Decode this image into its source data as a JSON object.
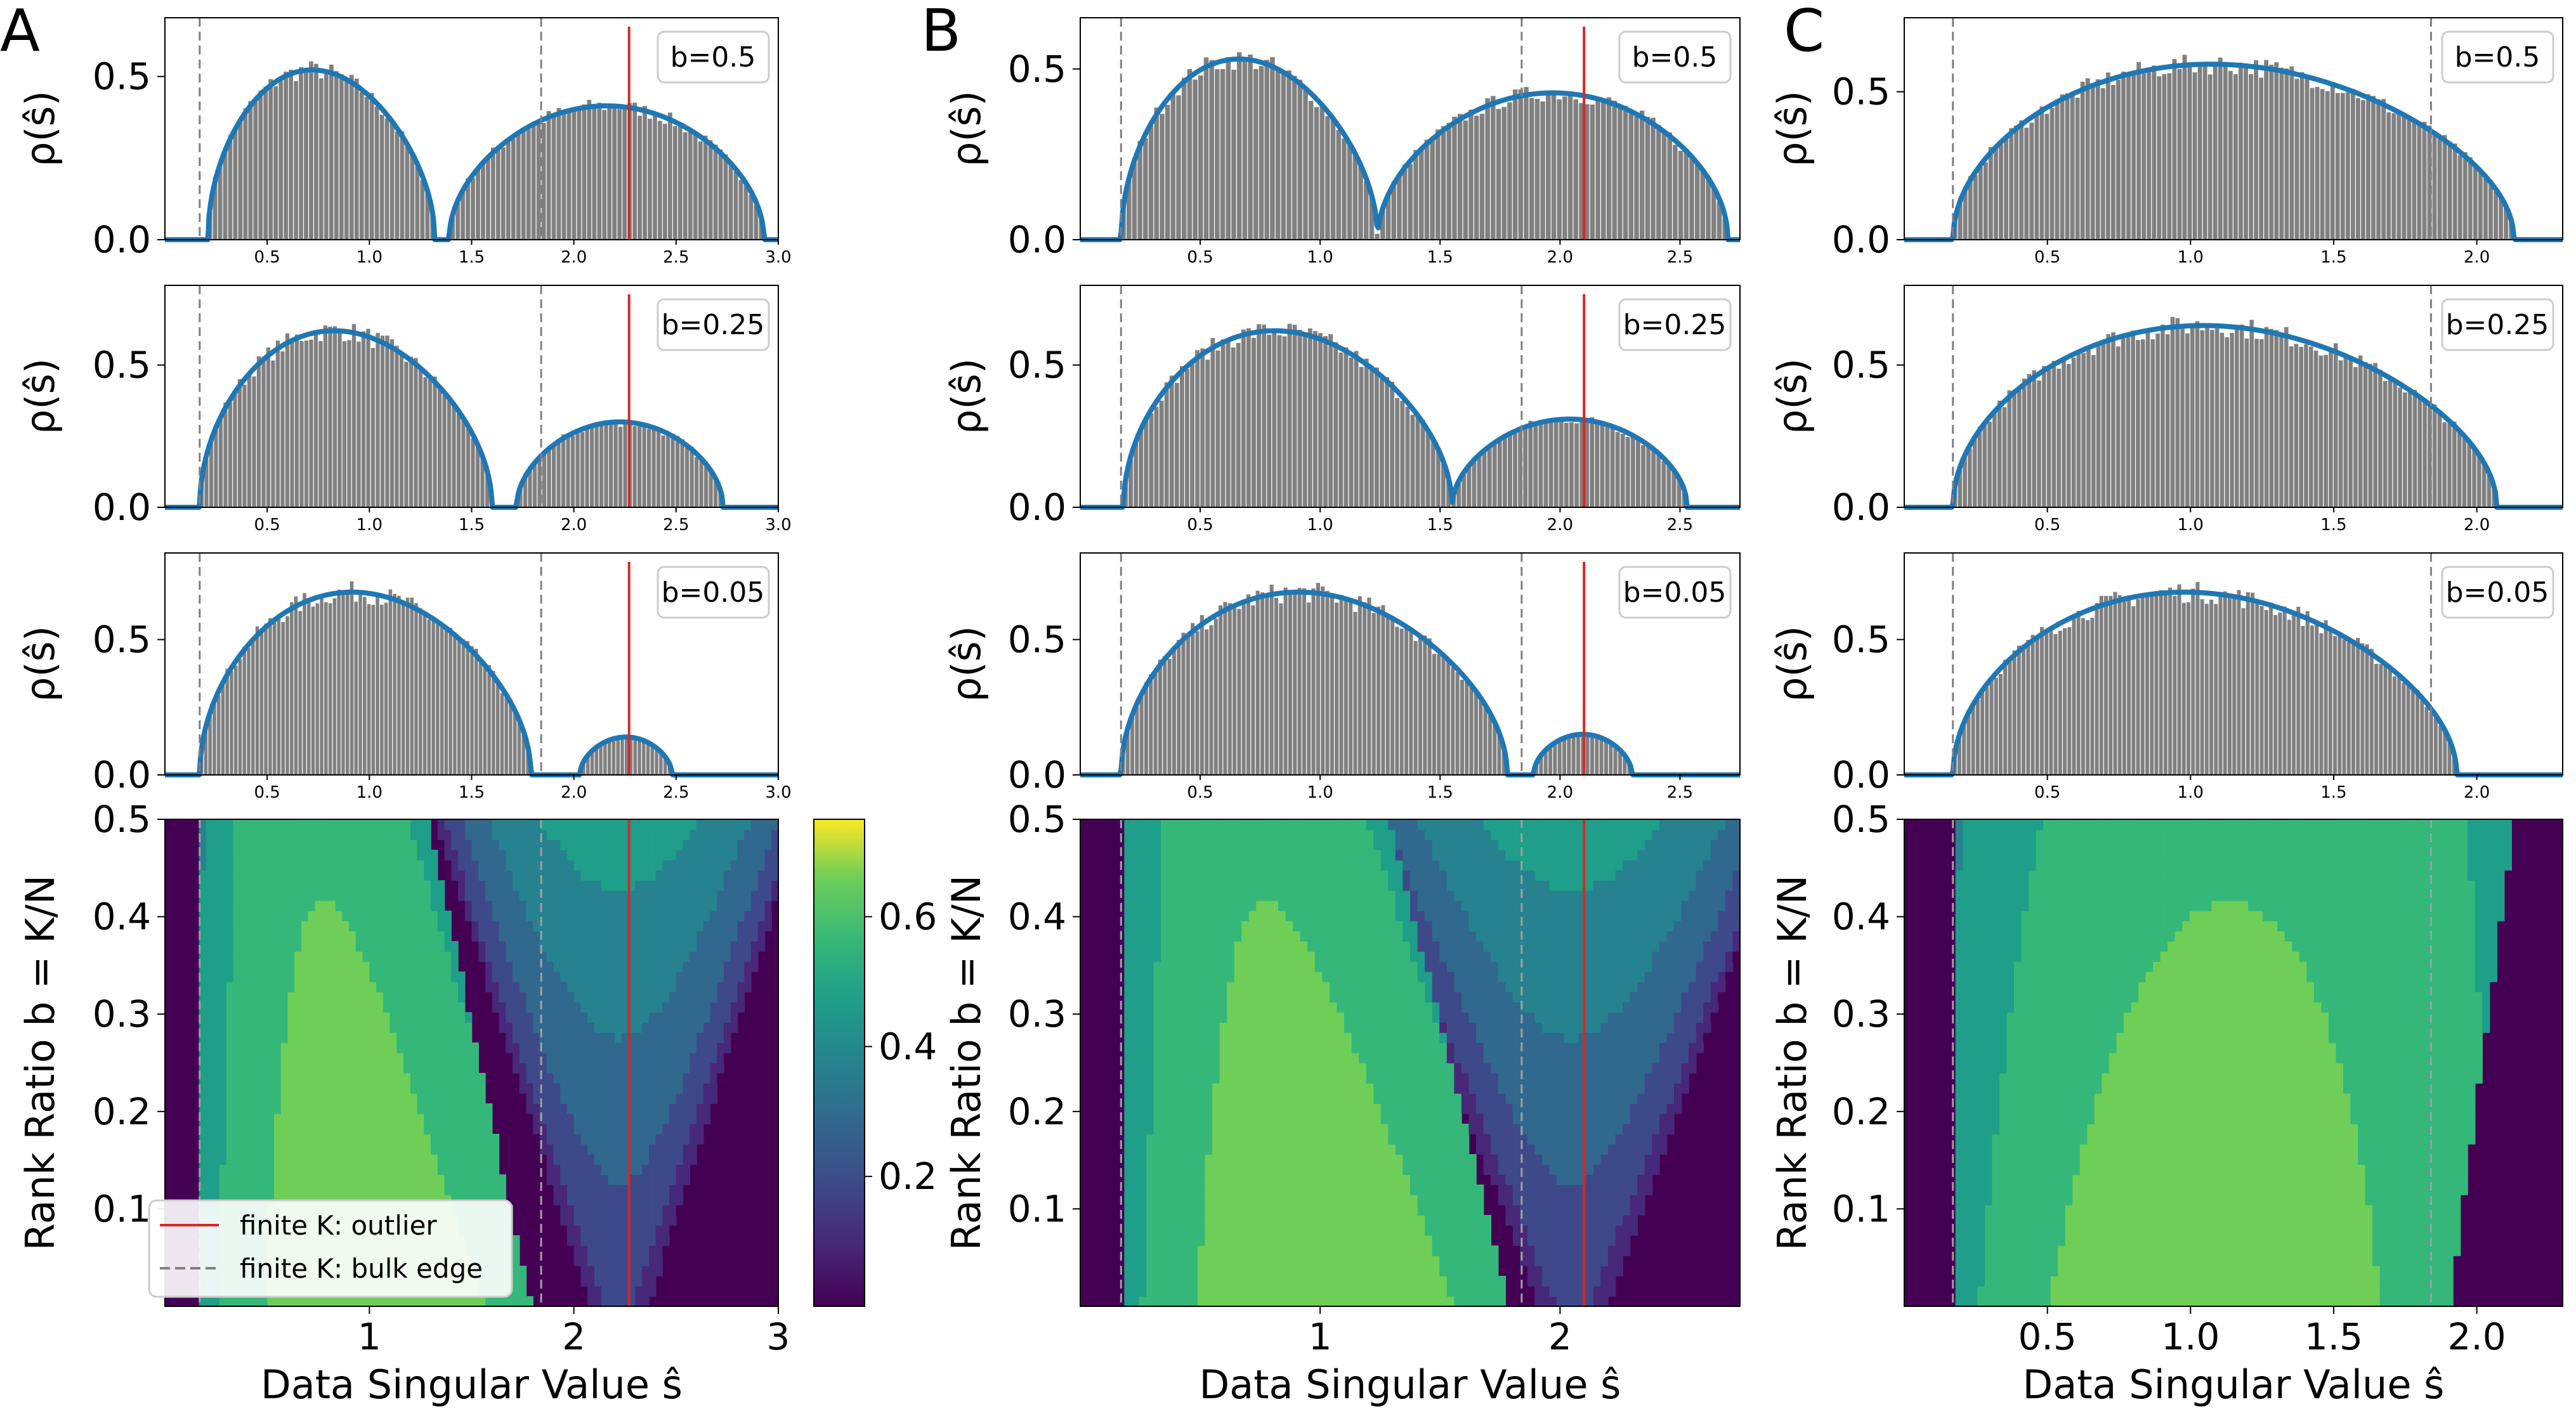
{
  "figure": {
    "y_axis_label_hist": "ρ(ŝ)",
    "y_axis_label_heatmap": "Rank Ratio b = K/N",
    "x_axis_label": "Data Singular Value ŝ",
    "colorbar_ticks": [
      "0.2",
      "0.4",
      "0.6"
    ],
    "colorbar_range": [
      0.0,
      0.75
    ],
    "legend": [
      {
        "label": "finite K: outlier",
        "color": "#d62728",
        "style": "solid"
      },
      {
        "label": "finite K: bulk edge",
        "color": "#808080",
        "style": "dashed"
      }
    ]
  },
  "chart_data": [
    {
      "panel": "A",
      "type": "bar",
      "description_of_layout": "three histograms with theory curves plus heatmap",
      "xlim": [
        0.0,
        3.0
      ],
      "hist_xticks": [
        "0.5",
        "1.0",
        "1.5",
        "2.0",
        "2.5",
        "3.0"
      ],
      "heatmap_xticks": [
        "1",
        "2",
        "3"
      ],
      "heatmap_ylim": [
        0.0,
        0.5
      ],
      "heatmap_yticks": [
        "0.1",
        "0.2",
        "0.3",
        "0.4",
        "0.5"
      ],
      "outlier": 2.27,
      "bulk_edges": [
        0.17,
        1.84
      ],
      "histograms": [
        {
          "label": "b=0.5",
          "ylim": [
            0,
            0.68
          ],
          "yticks": [
            "0.0",
            "0.5"
          ],
          "bulk": [
            [
              0.21,
              1.32,
              0.57
            ]
          ],
          "bump": [
            [
              1.39,
              2.93,
              0.41,
              2.15
            ]
          ]
        },
        {
          "label": "b=0.25",
          "ylim": [
            0,
            0.78
          ],
          "yticks": [
            "0.0",
            "0.5"
          ],
          "bulk": [
            [
              0.17,
              1.6,
              0.68
            ]
          ],
          "bump": [
            [
              1.72,
              2.73,
              0.3,
              2.2
            ]
          ]
        },
        {
          "label": "b=0.05",
          "ylim": [
            0,
            0.82
          ],
          "yticks": [
            "0.0",
            "0.5"
          ],
          "bulk": [
            [
              0.17,
              1.79,
              0.74
            ]
          ],
          "bump": [
            [
              2.03,
              2.48,
              0.14,
              2.25
            ]
          ]
        }
      ]
    },
    {
      "panel": "B",
      "type": "bar",
      "xlim": [
        0.0,
        2.75
      ],
      "hist_xticks": [
        "0.5",
        "1.0",
        "1.5",
        "2.0",
        "2.5"
      ],
      "heatmap_xticks": [
        "1",
        "2"
      ],
      "heatmap_ylim": [
        0.0,
        0.5
      ],
      "heatmap_yticks": [
        "0.1",
        "0.2",
        "0.3",
        "0.4",
        "0.5"
      ],
      "outlier": 2.1,
      "bulk_edges": [
        0.17,
        1.84
      ],
      "histograms": [
        {
          "label": "b=0.5",
          "ylim": [
            0,
            0.65
          ],
          "yticks": [
            "0.0",
            "0.5"
          ],
          "bulk": [
            [
              0.17,
              1.24,
              0.58
            ]
          ],
          "bump": [
            [
              1.24,
              2.7,
              0.43,
              1.95
            ]
          ]
        },
        {
          "label": "b=0.25",
          "ylim": [
            0,
            0.78
          ],
          "yticks": [
            "0.0",
            "0.5"
          ],
          "bulk": [
            [
              0.18,
              1.55,
              0.68
            ]
          ],
          "bump": [
            [
              1.55,
              2.53,
              0.31,
              2.0
            ]
          ]
        },
        {
          "label": "b=0.05",
          "ylim": [
            0,
            0.82
          ],
          "yticks": [
            "0.0",
            "0.5"
          ],
          "bulk": [
            [
              0.17,
              1.78,
              0.74
            ]
          ],
          "bump": [
            [
              1.89,
              2.3,
              0.15,
              2.1
            ]
          ]
        }
      ]
    },
    {
      "panel": "C",
      "type": "bar",
      "xlim": [
        0.0,
        2.3
      ],
      "hist_xticks": [
        "0.5",
        "1.0",
        "1.5",
        "2.0"
      ],
      "heatmap_xticks": [
        "0.5",
        "1.0",
        "1.5",
        "2.0"
      ],
      "heatmap_ylim": [
        0.0,
        0.5
      ],
      "heatmap_yticks": [
        "0.1",
        "0.2",
        "0.3",
        "0.4",
        "0.5"
      ],
      "outlier": null,
      "bulk_edges": [
        0.17,
        1.84
      ],
      "histograms": [
        {
          "label": "b=0.5",
          "ylim": [
            0,
            0.75
          ],
          "yticks": [
            "0.0",
            "0.5"
          ],
          "bulk": [
            [
              0.17,
              2.13,
              0.65
            ]
          ],
          "bump": []
        },
        {
          "label": "b=0.25",
          "ylim": [
            0,
            0.78
          ],
          "yticks": [
            "0.0",
            "0.5"
          ],
          "bulk": [
            [
              0.17,
              2.07,
              0.7
            ]
          ],
          "bump": []
        },
        {
          "label": "b=0.05",
          "ylim": [
            0,
            0.82
          ],
          "yticks": [
            "0.0",
            "0.5"
          ],
          "bulk": [
            [
              0.17,
              1.93,
              0.74
            ]
          ],
          "bump": []
        }
      ]
    }
  ]
}
